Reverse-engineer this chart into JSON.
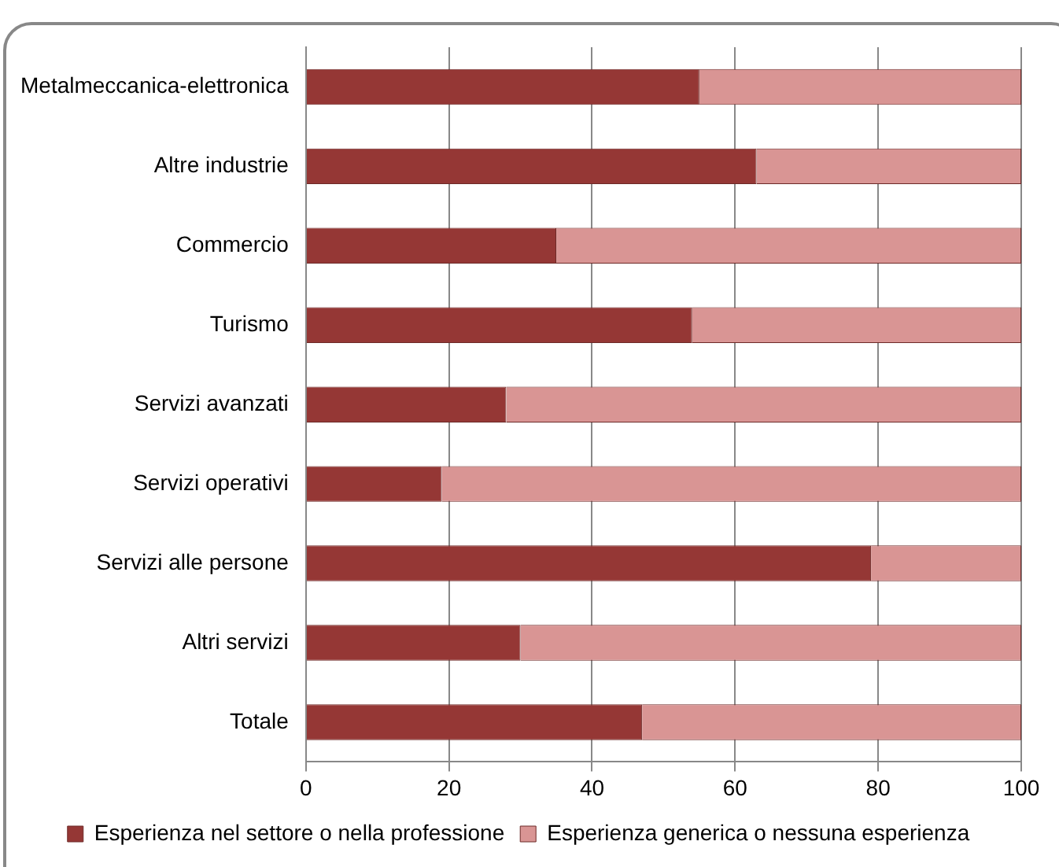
{
  "chart_data": {
    "type": "bar",
    "orientation": "horizontal",
    "stacked": true,
    "categories": [
      "Metalmeccanica-elettronica",
      "Altre industrie",
      "Commercio",
      "Turismo",
      "Servizi avanzati",
      "Servizi operativi",
      "Servizi alle persone",
      "Altri servizi",
      "Totale"
    ],
    "series": [
      {
        "name": "Esperienza nel settore o nella professione",
        "color": "#953735",
        "values": [
          55,
          63,
          35,
          54,
          28,
          19,
          79,
          30,
          47
        ]
      },
      {
        "name": "Esperienza generica o nessuna esperienza",
        "color": "#d99594",
        "values": [
          45,
          37,
          65,
          46,
          72,
          81,
          21,
          70,
          53
        ]
      }
    ],
    "xlim": [
      0,
      100
    ],
    "xticks": [
      0,
      20,
      40,
      60,
      80,
      100
    ],
    "grid": "x",
    "legend": "bottom"
  }
}
